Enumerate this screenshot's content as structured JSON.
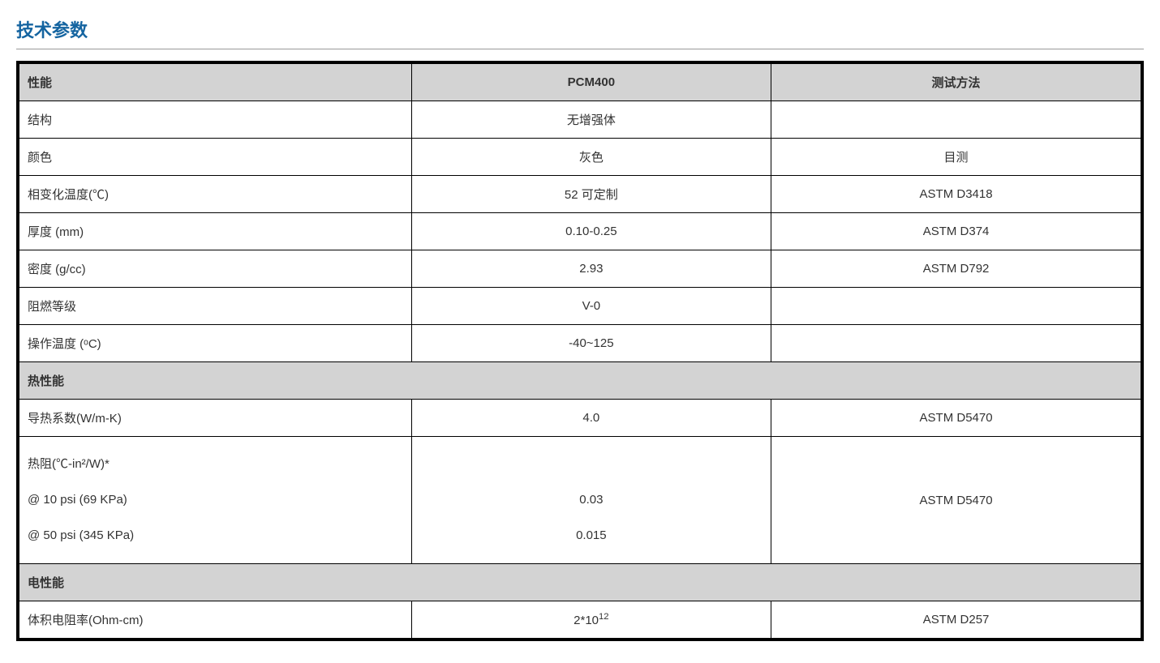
{
  "title": "技术参数",
  "colors": {
    "title_color": "#1464a0",
    "border_color": "#000000",
    "header_bg": "#d3d3d3",
    "section_bg": "#d3d3d3",
    "text_color": "#333333",
    "divider_color": "#999999",
    "page_bg": "#ffffff"
  },
  "typography": {
    "title_fontsize": 22,
    "cell_fontsize": 15,
    "font_family": "Microsoft YaHei"
  },
  "table": {
    "columns": [
      {
        "label": "性能",
        "align": "left",
        "width_pct": 35
      },
      {
        "label": "PCM400",
        "align": "center",
        "width_pct": 32
      },
      {
        "label": "测试方法",
        "align": "center",
        "width_pct": 33
      }
    ],
    "header": {
      "prop": "性能",
      "val": "PCM400",
      "method": "测试方法"
    },
    "rows": [
      {
        "prop": "结构",
        "val": "无增强体",
        "method": ""
      },
      {
        "prop": "颜色",
        "val": "灰色",
        "method": "目测"
      },
      {
        "prop": "相变化温度(℃)",
        "val": "52  可定制",
        "method": "ASTM D3418"
      },
      {
        "prop": "厚度  (mm)",
        "val": "0.10-0.25",
        "method": "ASTM   D374"
      },
      {
        "prop": "密度  (g/cc)",
        "val": "2.93",
        "method": "ASTM D792"
      },
      {
        "prop": "阻燃等级",
        "val": "V-0",
        "method": ""
      },
      {
        "prop": "操作温度 (ᵒC)",
        "val": "-40~125",
        "method": ""
      }
    ],
    "thermal_section": {
      "label": "热性能",
      "rows": [
        {
          "prop": "导热系数(W/m-K)",
          "val": "4.0",
          "method": "ASTM   D5470"
        }
      ],
      "thermal_resistance": {
        "prop_lines": [
          "热阻(℃-in²/W)*",
          "@ 10 psi (69 KPa)",
          "@ 50 psi   (345 KPa)"
        ],
        "val_lines": [
          "",
          "0.03",
          "0.015"
        ],
        "method": "ASTM   D5470"
      }
    },
    "electrical_section": {
      "label": "电性能",
      "rows": [
        {
          "prop": "体积电阻率(Ohm-cm)",
          "val_base": "2*10",
          "val_exp": "12",
          "method": "ASTM   D257"
        }
      ]
    }
  }
}
